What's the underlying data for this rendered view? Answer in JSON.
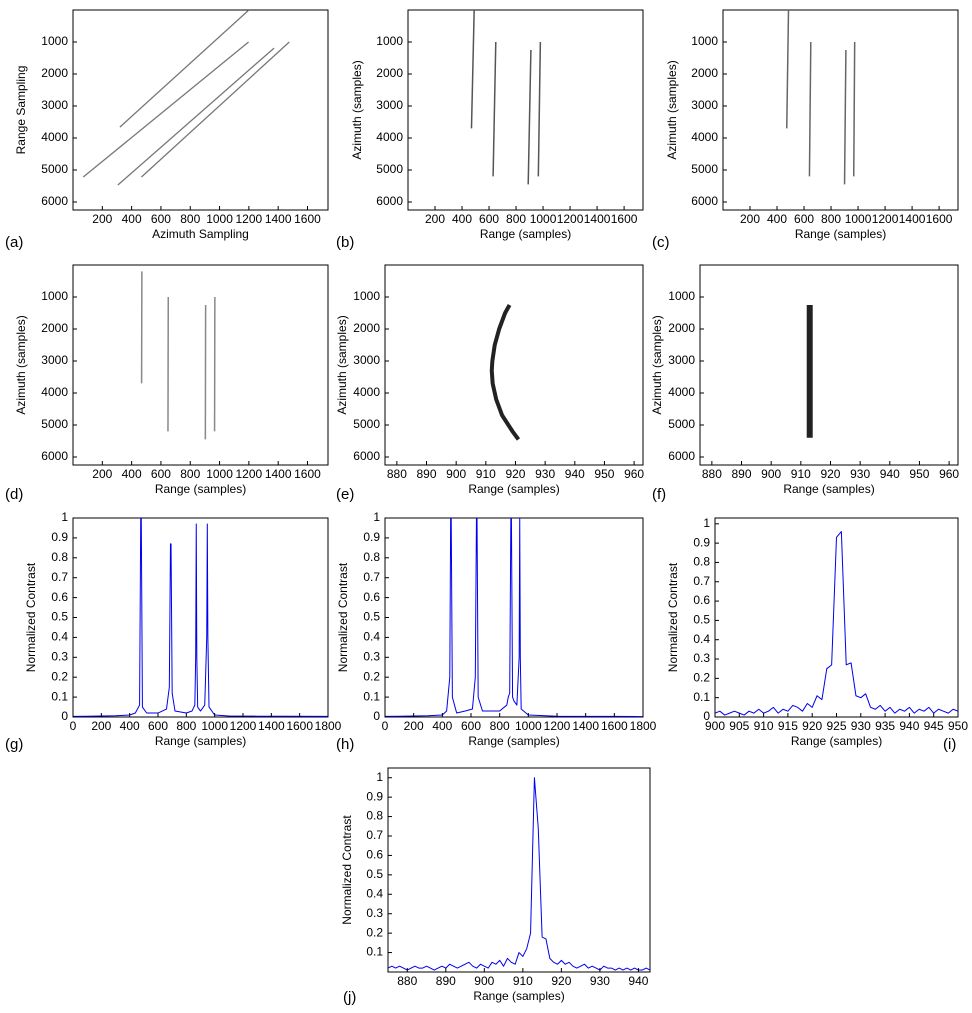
{
  "chart_data": [
    {
      "type": "line",
      "panel_label": "(a)",
      "x_label": "Azimuth Sampling",
      "y_label": "Range Sampling",
      "y_inverted": true,
      "xlim": [
        0,
        1740
      ],
      "ylim": [
        0,
        6250
      ],
      "xticks": [
        200,
        400,
        600,
        800,
        1000,
        1200,
        1400,
        1600
      ],
      "yticks": [
        1000,
        2000,
        3000,
        4000,
        5000,
        6000
      ],
      "series": [
        {
          "color": "#777777",
          "line_width": 1.3,
          "x": [
            320,
            1200
          ],
          "values": [
            3660,
            0
          ]
        },
        {
          "color": "#777777",
          "line_width": 1.3,
          "x": [
            70,
            1198
          ],
          "values": [
            5220,
            1000
          ]
        },
        {
          "color": "#777777",
          "line_width": 1.3,
          "x": [
            306,
            1372
          ],
          "values": [
            5470,
            1190
          ]
        },
        {
          "color": "#777777",
          "line_width": 1.3,
          "x": [
            467,
            1476
          ],
          "values": [
            5220,
            1000
          ]
        }
      ]
    },
    {
      "type": "line",
      "panel_label": "(b)",
      "x_label": "Range (samples)",
      "y_label": "Azimuth (samples)",
      "y_inverted": true,
      "xlim": [
        0,
        1740
      ],
      "ylim": [
        0,
        6250
      ],
      "xticks": [
        200,
        400,
        600,
        800,
        1000,
        1200,
        1400,
        1600
      ],
      "yticks": [
        1000,
        2000,
        3000,
        4000,
        5000,
        6000
      ],
      "series": [
        {
          "color": "#555555",
          "line_width": 1.5,
          "x": [
            490,
            470
          ],
          "values": [
            0,
            3700
          ]
        },
        {
          "color": "#555555",
          "line_width": 1.5,
          "x": [
            650,
            630
          ],
          "values": [
            1000,
            5200
          ]
        },
        {
          "color": "#555555",
          "line_width": 1.5,
          "x": [
            910,
            890
          ],
          "values": [
            1250,
            5450
          ]
        },
        {
          "color": "#555555",
          "line_width": 1.5,
          "x": [
            980,
            965
          ],
          "values": [
            1000,
            5200
          ]
        }
      ]
    },
    {
      "type": "line",
      "panel_label": "(c)",
      "x_label": "Range (samples)",
      "y_label": "Azimuth (samples)",
      "y_inverted": true,
      "xlim": [
        0,
        1740
      ],
      "ylim": [
        0,
        6250
      ],
      "xticks": [
        200,
        400,
        600,
        800,
        1000,
        1200,
        1400,
        1600
      ],
      "yticks": [
        1000,
        2000,
        3000,
        4000,
        5000,
        6000
      ],
      "series": [
        {
          "color": "#666666",
          "line_width": 1.5,
          "x": [
            485,
            472
          ],
          "values": [
            0,
            3700
          ]
        },
        {
          "color": "#666666",
          "line_width": 1.5,
          "x": [
            650,
            640
          ],
          "values": [
            1000,
            5200
          ]
        },
        {
          "color": "#666666",
          "line_width": 1.5,
          "x": [
            910,
            900
          ],
          "values": [
            1250,
            5450
          ]
        },
        {
          "color": "#666666",
          "line_width": 1.5,
          "x": [
            975,
            968
          ],
          "values": [
            1000,
            5200
          ]
        }
      ]
    },
    {
      "type": "line",
      "panel_label": "(d)",
      "x_label": "Range (samples)",
      "y_label": "Azimuth (samples)",
      "y_inverted": true,
      "xlim": [
        0,
        1740
      ],
      "ylim": [
        0,
        6250
      ],
      "xticks": [
        200,
        400,
        600,
        800,
        1000,
        1200,
        1400,
        1600
      ],
      "yticks": [
        1000,
        2000,
        3000,
        4000,
        5000,
        6000
      ],
      "series": [
        {
          "color": "#888888",
          "line_width": 1.5,
          "x": [
            470,
            468
          ],
          "values": [
            200,
            3700
          ]
        },
        {
          "color": "#888888",
          "line_width": 1.5,
          "x": [
            650,
            648
          ],
          "values": [
            1000,
            5200
          ]
        },
        {
          "color": "#888888",
          "line_width": 1.5,
          "x": [
            905,
            903
          ],
          "values": [
            1250,
            5450
          ]
        },
        {
          "color": "#888888",
          "line_width": 1.5,
          "x": [
            968,
            966
          ],
          "values": [
            1000,
            5200
          ]
        }
      ]
    },
    {
      "type": "line",
      "panel_label": "(e)",
      "x_label": "Range (samples)",
      "y_label": "Azimuth (samples)",
      "y_inverted": true,
      "xlim": [
        876,
        963
      ],
      "ylim": [
        0,
        6250
      ],
      "xticks": [
        880,
        890,
        900,
        910,
        920,
        930,
        940,
        950,
        960
      ],
      "yticks": [
        1000,
        2000,
        3000,
        4000,
        5000,
        6000
      ],
      "series": [
        {
          "color": "#222222",
          "line_width": 4,
          "x": [
            918,
            916.5,
            914.5,
            913,
            912.2,
            912,
            912.3,
            913.5,
            915.5,
            919,
            921
          ],
          "values": [
            1250,
            1500,
            2000,
            2500,
            3000,
            3300,
            3700,
            4200,
            4700,
            5200,
            5450
          ]
        }
      ]
    },
    {
      "type": "line",
      "panel_label": "(f)",
      "x_label": "Range (samples)",
      "y_label": "Azimuth (samples)",
      "y_inverted": true,
      "xlim": [
        876,
        963
      ],
      "ylim": [
        0,
        6250
      ],
      "xticks": [
        880,
        890,
        900,
        910,
        920,
        930,
        940,
        950,
        960
      ],
      "yticks": [
        1000,
        2000,
        3000,
        4000,
        5000,
        6000
      ],
      "series": [
        {
          "color": "#222222",
          "line_width": 6,
          "x": [
            913,
            913
          ],
          "values": [
            1250,
            5400
          ]
        }
      ]
    },
    {
      "type": "line",
      "panel_label": "(g)",
      "x_label": "Range (samples)",
      "y_label": "Normalized Contrast",
      "xlim": [
        0,
        1800
      ],
      "ylim": [
        0,
        1
      ],
      "xticks": [
        0,
        200,
        400,
        600,
        800,
        1000,
        1200,
        1400,
        1600,
        1800
      ],
      "yticks": [
        0,
        0.1,
        0.2,
        0.3,
        0.4,
        0.5,
        0.6,
        0.7,
        0.8,
        0.9,
        1
      ],
      "series": [
        {
          "color": "#0000ee",
          "line_width": 1,
          "x": [
            0,
            100,
            200,
            300,
            400,
            440,
            470,
            478,
            482,
            490,
            520,
            600,
            660,
            680,
            688,
            692,
            700,
            720,
            800,
            840,
            860,
            866,
            870,
            874,
            880,
            900,
            930,
            944,
            948,
            952,
            960,
            1000,
            1100,
            1300,
            1500,
            1800
          ],
          "values": [
            0.003,
            0.004,
            0.005,
            0.006,
            0.01,
            0.02,
            0.06,
            1,
            1,
            0.05,
            0.02,
            0.02,
            0.04,
            0.15,
            0.87,
            0.87,
            0.12,
            0.03,
            0.02,
            0.03,
            0.06,
            0.3,
            0.97,
            0.3,
            0.05,
            0.03,
            0.06,
            0.4,
            0.97,
            0.4,
            0.05,
            0.01,
            0.005,
            0.004,
            0.004,
            0.003
          ]
        }
      ]
    },
    {
      "type": "line",
      "panel_label": "(h)",
      "x_label": "Range (samples)",
      "y_label": "Normalized Contrast",
      "xlim": [
        0,
        1800
      ],
      "ylim": [
        0,
        1
      ],
      "xticks": [
        0,
        200,
        400,
        600,
        800,
        1000,
        1200,
        1400,
        1600,
        1800
      ],
      "yticks": [
        0,
        0.1,
        0.2,
        0.3,
        0.4,
        0.5,
        0.6,
        0.7,
        0.8,
        0.9,
        1
      ],
      "series": [
        {
          "color": "#0000ee",
          "line_width": 1,
          "x": [
            0,
            100,
            200,
            300,
            400,
            430,
            452,
            458,
            462,
            470,
            500,
            560,
            610,
            630,
            638,
            642,
            650,
            680,
            800,
            850,
            860,
            870,
            878,
            882,
            890,
            900,
            920,
            936,
            940,
            944,
            950,
            1000,
            1200,
            1400,
            1600,
            1800
          ],
          "values": [
            0.003,
            0.004,
            0.005,
            0.006,
            0.01,
            0.03,
            0.2,
            1,
            1,
            0.1,
            0.02,
            0.03,
            0.04,
            0.2,
            1,
            1,
            0.1,
            0.03,
            0.03,
            0.06,
            0.1,
            0.12,
            1,
            1,
            0.1,
            0.08,
            0.06,
            0.3,
            1,
            0.3,
            0.04,
            0.01,
            0.004,
            0.003,
            0.003,
            0.002
          ]
        }
      ]
    },
    {
      "type": "line",
      "panel_label": "(i)",
      "x_label": "Range (samples)",
      "y_label": "Normalized Contrast",
      "xlim": [
        900,
        950
      ],
      "ylim": [
        0,
        1.03
      ],
      "xticks": [
        900,
        905,
        910,
        915,
        920,
        925,
        930,
        935,
        940,
        945,
        950
      ],
      "yticks": [
        0,
        0.1,
        0.2,
        0.3,
        0.4,
        0.5,
        0.6,
        0.7,
        0.8,
        0.9,
        1
      ],
      "series": [
        {
          "color": "#0000ee",
          "line_width": 1,
          "x": [
            900,
            901,
            902,
            903,
            904,
            905,
            906,
            907,
            908,
            909,
            910,
            911,
            912,
            913,
            914,
            915,
            916,
            917,
            918,
            919,
            920,
            921,
            922,
            923,
            924,
            925,
            926,
            927,
            928,
            929,
            930,
            931,
            932,
            933,
            934,
            935,
            936,
            937,
            938,
            939,
            940,
            941,
            942,
            943,
            944,
            945,
            946,
            947,
            948,
            949,
            950
          ],
          "values": [
            0.02,
            0.03,
            0.01,
            0.02,
            0.03,
            0.02,
            0.01,
            0.03,
            0.02,
            0.04,
            0.02,
            0.03,
            0.05,
            0.02,
            0.04,
            0.03,
            0.06,
            0.05,
            0.03,
            0.07,
            0.05,
            0.11,
            0.09,
            0.25,
            0.27,
            0.93,
            0.96,
            0.27,
            0.28,
            0.11,
            0.1,
            0.12,
            0.05,
            0.04,
            0.06,
            0.03,
            0.05,
            0.02,
            0.04,
            0.03,
            0.05,
            0.02,
            0.04,
            0.03,
            0.05,
            0.02,
            0.04,
            0.03,
            0.02,
            0.04,
            0.03
          ]
        }
      ]
    },
    {
      "type": "line",
      "panel_label": "(j)",
      "x_label": "Range (samples)",
      "y_label": "Normalized Contrast",
      "xlim": [
        875,
        943
      ],
      "ylim": [
        0,
        1.05
      ],
      "xticks": [
        880,
        890,
        900,
        910,
        920,
        930,
        940
      ],
      "yticks": [
        0.1,
        0.2,
        0.3,
        0.4,
        0.5,
        0.6,
        0.7,
        0.8,
        0.9,
        1
      ],
      "series": [
        {
          "color": "#0000ee",
          "line_width": 1,
          "x": [
            875,
            876,
            877,
            878,
            879,
            880,
            881,
            882,
            883,
            884,
            885,
            886,
            887,
            888,
            889,
            890,
            891,
            892,
            893,
            894,
            895,
            896,
            897,
            898,
            899,
            900,
            901,
            902,
            903,
            904,
            905,
            906,
            907,
            908,
            909,
            910,
            911,
            912,
            913,
            914,
            915,
            916,
            917,
            918,
            919,
            920,
            921,
            922,
            923,
            924,
            925,
            926,
            927,
            928,
            929,
            930,
            931,
            932,
            933,
            934,
            935,
            936,
            937,
            938,
            939,
            940,
            941,
            942,
            943
          ],
          "values": [
            0.02,
            0.03,
            0.02,
            0.03,
            0.02,
            0.01,
            0.02,
            0.03,
            0.02,
            0.02,
            0.03,
            0.02,
            0.01,
            0.02,
            0.03,
            0.02,
            0.04,
            0.03,
            0.02,
            0.03,
            0.04,
            0.05,
            0.03,
            0.02,
            0.04,
            0.03,
            0.02,
            0.05,
            0.04,
            0.06,
            0.03,
            0.07,
            0.05,
            0.04,
            0.1,
            0.08,
            0.12,
            0.2,
            1,
            0.74,
            0.18,
            0.17,
            0.07,
            0.05,
            0.04,
            0.06,
            0.04,
            0.05,
            0.03,
            0.02,
            0.03,
            0.04,
            0.02,
            0.03,
            0.02,
            0.01,
            0.03,
            0.02,
            0.02,
            0.01,
            0.02,
            0.01,
            0.02,
            0.01,
            0.02,
            0.01,
            0.01,
            0.02,
            0.01
          ]
        }
      ]
    }
  ]
}
